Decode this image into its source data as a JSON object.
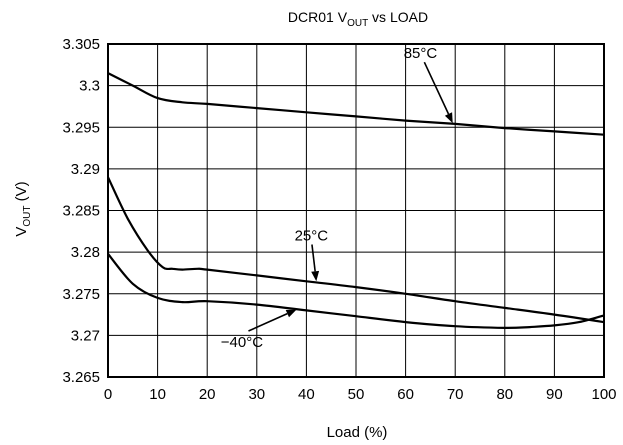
{
  "chart_data": {
    "type": "line",
    "title": {
      "main": "DCR01 V",
      "sub": "OUT",
      "rest": " vs LOAD"
    },
    "xlabel": "Load (%)",
    "ylabel": {
      "main": "V",
      "sub": "OUT",
      "rest": " (V)"
    },
    "xlim": [
      0,
      100
    ],
    "ylim": [
      3.265,
      3.305
    ],
    "x_ticks": [
      0,
      10,
      20,
      30,
      40,
      50,
      60,
      70,
      80,
      90,
      100
    ],
    "y_ticks": [
      "3.265",
      "3.27",
      "3.275",
      "3.28",
      "3.285",
      "3.29",
      "3.295",
      "3.3",
      "3.305"
    ],
    "grid": true,
    "series": [
      {
        "name": "85°C",
        "x": [
          0,
          5,
          10,
          15,
          20,
          30,
          40,
          50,
          60,
          70,
          80,
          90,
          100
        ],
        "y": [
          3.3015,
          3.3,
          3.2985,
          3.298,
          3.2978,
          3.2973,
          3.2968,
          3.2963,
          3.2958,
          3.2954,
          3.2949,
          3.2945,
          3.2941
        ]
      },
      {
        "name": "25°C",
        "x": [
          0,
          4,
          8,
          11,
          13,
          15,
          18,
          20,
          30,
          40,
          50,
          60,
          70,
          80,
          90,
          100
        ],
        "y": [
          3.289,
          3.284,
          3.2802,
          3.2782,
          3.278,
          3.2779,
          3.278,
          3.2779,
          3.2772,
          3.2765,
          3.2758,
          3.275,
          3.2741,
          3.2733,
          3.2725,
          3.2716
        ]
      },
      {
        "name": "−40°C",
        "x": [
          0,
          5,
          10,
          15,
          20,
          30,
          40,
          50,
          60,
          70,
          80,
          85,
          90,
          95,
          100
        ],
        "y": [
          3.2798,
          3.2762,
          3.2745,
          3.274,
          3.2741,
          3.2737,
          3.273,
          3.2723,
          3.2716,
          3.2711,
          3.2709,
          3.271,
          3.2712,
          3.2716,
          3.2724
        ]
      }
    ],
    "annotations": [
      {
        "text": "85°C",
        "series": 0,
        "label_at": [
          63,
          3.3033
        ],
        "arrow_to": [
          69.5,
          3.2955
        ]
      },
      {
        "text": "25°C",
        "series": 1,
        "label_at": [
          41,
          3.2814
        ],
        "arrow_to": [
          42,
          3.2765
        ]
      },
      {
        "text": "−40°C",
        "series": 2,
        "label_at": [
          27,
          3.2686
        ],
        "arrow_to": [
          38,
          3.2731
        ]
      }
    ]
  }
}
